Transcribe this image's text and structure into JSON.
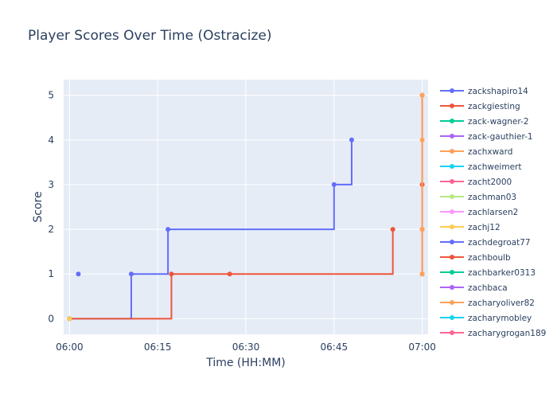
{
  "chart_data": {
    "type": "line",
    "line_shape": "step",
    "title": "Player Scores Over Time (Ostracize)",
    "xlabel": "Time (HH:MM)",
    "ylabel": "Score",
    "x_ticks": [
      "06:00",
      "06:15",
      "06:30",
      "06:45",
      "07:00"
    ],
    "y_ticks": [
      0,
      1,
      2,
      3,
      4,
      5
    ],
    "xlim": [
      "05:59",
      "07:01"
    ],
    "ylim": [
      -0.35,
      5.35
    ],
    "grid": true,
    "legend_position": "right",
    "background_color": "#e5ecf6",
    "series": [
      {
        "name": "zackshapiro14",
        "color": "#636efa",
        "points": [
          [
            "06:00",
            0
          ],
          [
            "06:10:30",
            1
          ],
          [
            "06:16:45",
            2
          ],
          [
            "06:45",
            3
          ],
          [
            "06:48",
            4
          ]
        ]
      },
      {
        "name": "zackgiesting",
        "color": "#ef553b",
        "points": [
          [
            "06:00",
            0
          ],
          [
            "06:17:20",
            1
          ],
          [
            "06:27:15",
            1
          ],
          [
            "06:55",
            2
          ]
        ]
      },
      {
        "name": "zack-wagner-2",
        "color": "#00cc96",
        "points": [
          [
            "06:00",
            0
          ]
        ]
      },
      {
        "name": "zack-gauthier-1",
        "color": "#ab63fa",
        "points": [
          [
            "06:00",
            0
          ]
        ]
      },
      {
        "name": "zachxward",
        "color": "#ffa15a",
        "points": [
          [
            "06:00",
            0
          ]
        ]
      },
      {
        "name": "zachweimert",
        "color": "#19d3f3",
        "points": [
          [
            "06:00",
            0
          ]
        ]
      },
      {
        "name": "zacht2000",
        "color": "#ff6692",
        "points": [
          [
            "06:00",
            0
          ]
        ]
      },
      {
        "name": "zachman03",
        "color": "#b6e880",
        "points": [
          [
            "06:00",
            0
          ]
        ]
      },
      {
        "name": "zachlarsen2",
        "color": "#ff97ff",
        "points": [
          [
            "06:00",
            0
          ]
        ]
      },
      {
        "name": "zachj12",
        "color": "#fecb52",
        "points": [
          [
            "06:00",
            0
          ]
        ]
      },
      {
        "name": "zachdegroat77",
        "color": "#636efa",
        "points": [
          [
            "06:01:30",
            1
          ]
        ]
      },
      {
        "name": "zachboulb",
        "color": "#ef553b",
        "points": [
          [
            "07:00",
            1
          ],
          [
            "07:00",
            2
          ],
          [
            "07:00",
            3
          ],
          [
            "07:00",
            5
          ]
        ]
      },
      {
        "name": "zachbarker0313",
        "color": "#00cc96",
        "points": []
      },
      {
        "name": "zachbaca",
        "color": "#ab63fa",
        "points": []
      },
      {
        "name": "zacharyoliver82",
        "color": "#ffa15a",
        "points": [
          [
            "07:00",
            1
          ],
          [
            "07:00",
            2
          ],
          [
            "07:00",
            4
          ],
          [
            "07:00",
            5
          ]
        ]
      },
      {
        "name": "zacharymobley",
        "color": "#19d3f3",
        "points": []
      },
      {
        "name": "zacharygrogan189",
        "color": "#ff6692",
        "points": []
      }
    ]
  }
}
